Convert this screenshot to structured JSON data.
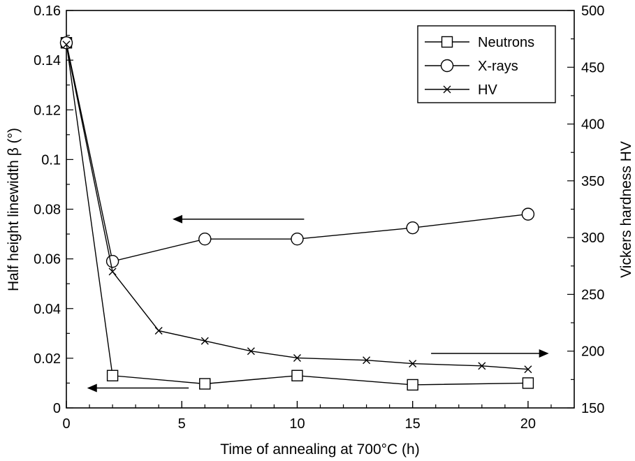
{
  "chart_data": {
    "type": "line",
    "xlabel": "Time of annealing at 700°C (h)",
    "ylabel_left": "Half height linewidth β (°)",
    "ylabel_right": "Vickers hardness HV",
    "xlim": [
      0,
      22
    ],
    "ylim_left": [
      0,
      0.16
    ],
    "ylim_right": [
      150,
      500
    ],
    "x_ticks": [
      "0",
      "5",
      "10",
      "15",
      "20"
    ],
    "y_left_ticks": [
      "0",
      "0.02",
      "0.04",
      "0.06",
      "0.08",
      "0.1",
      "0.12",
      "0.14",
      "0.16"
    ],
    "y_right_ticks": [
      "150",
      "200",
      "250",
      "300",
      "350",
      "400",
      "450",
      "500"
    ],
    "series": [
      {
        "name": "Neutrons",
        "axis": "left",
        "marker": "square",
        "x": [
          0,
          2,
          6,
          10,
          15,
          20
        ],
        "y": [
          0.147,
          0.013,
          0.0097,
          0.013,
          0.0093,
          0.01
        ]
      },
      {
        "name": "X-rays",
        "axis": "left",
        "marker": "circle",
        "x": [
          0,
          2,
          6,
          10,
          15,
          20
        ],
        "y": [
          0.147,
          0.059,
          0.068,
          0.068,
          0.0725,
          0.078
        ]
      },
      {
        "name": "HV",
        "axis": "right",
        "marker": "cross",
        "x": [
          0,
          2,
          4,
          6,
          8,
          10,
          13,
          15,
          18,
          20
        ],
        "y": [
          470,
          270,
          218,
          209,
          200,
          194,
          192,
          189,
          187,
          184
        ]
      }
    ],
    "annotations": [
      {
        "direction": "left",
        "axis": "left",
        "x_from": 10.3,
        "x_to": 4.6,
        "y": 0.076
      },
      {
        "direction": "left",
        "axis": "left",
        "x_from": 5.3,
        "x_to": 0.9,
        "y": 0.008
      },
      {
        "direction": "right",
        "axis": "right",
        "x_from": 15.8,
        "x_to": 20.9,
        "y": 198
      }
    ],
    "legend_position": "top-right",
    "grid": false
  }
}
